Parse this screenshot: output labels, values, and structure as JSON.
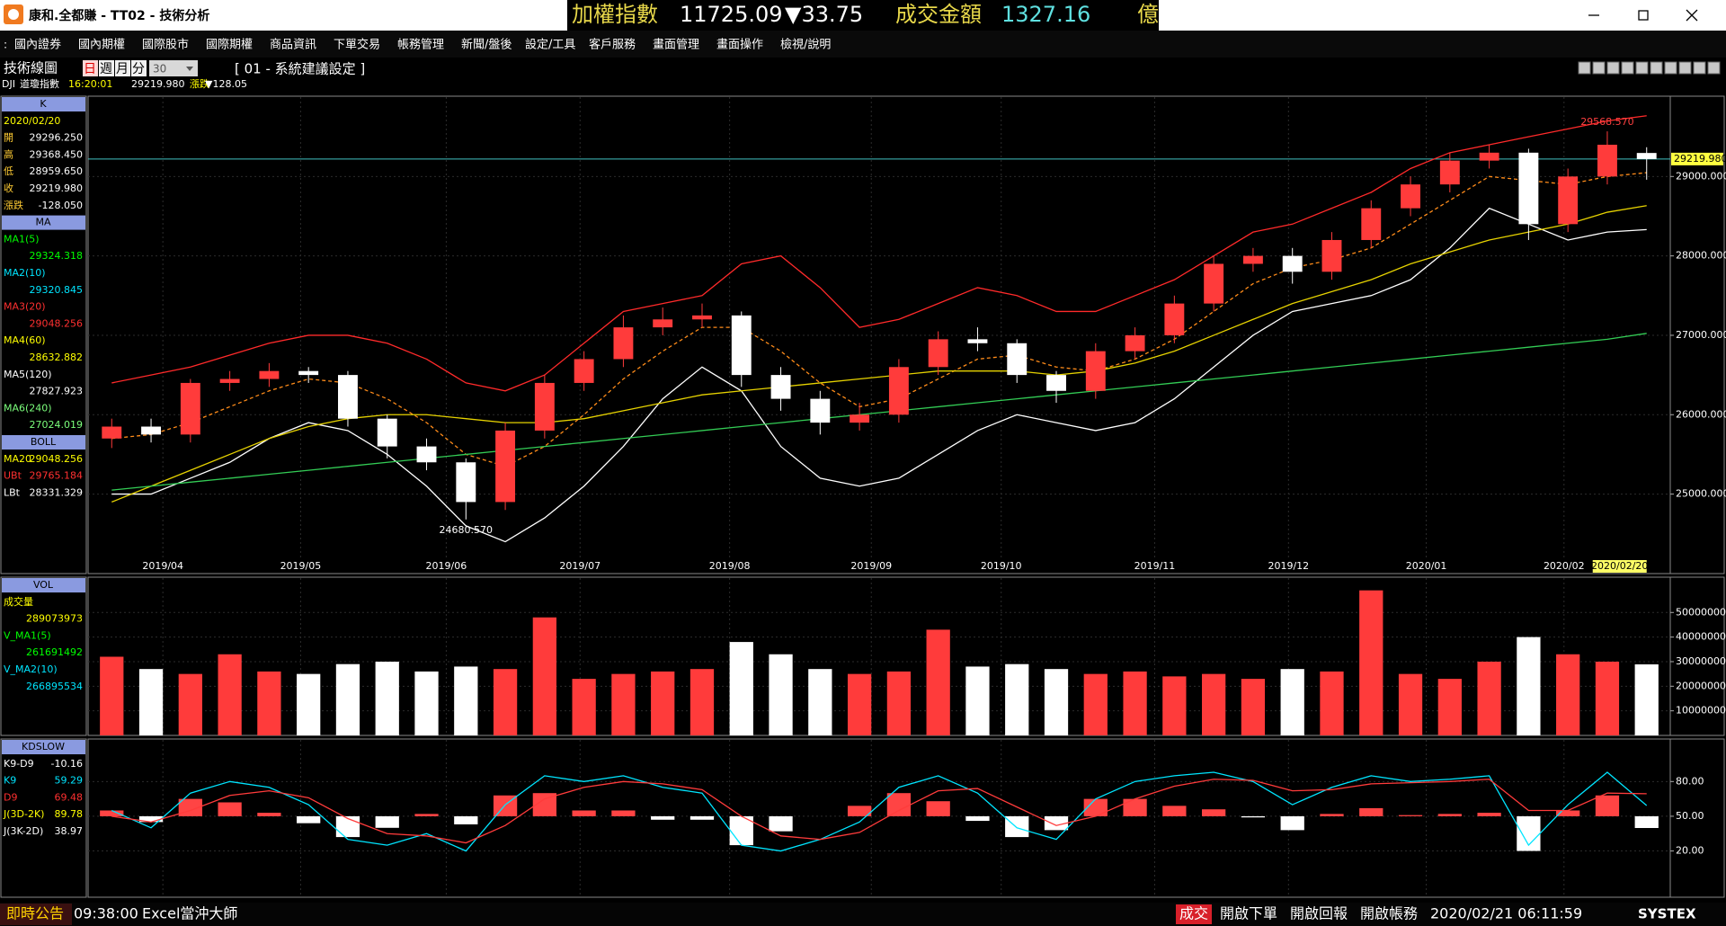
{
  "window": {
    "title": "康和.全都賺 - TT02 - 技術分析",
    "ticker": {
      "index_label": "加權指數",
      "index_value": "11725.09",
      "index_change": "▼33.75",
      "amount_label": "成交金額",
      "amount_value": "1327.16",
      "amount_unit": "億"
    }
  },
  "menu": [
    "國內證券",
    "國內期權",
    "國際股市",
    "國際期權",
    "商品資訊",
    "下單交易",
    "帳務管理",
    "新聞/盤後",
    "設定/工具",
    "客戶服務",
    "畫面管理",
    "畫面操作",
    "檢視/說明"
  ],
  "toolbar": {
    "title": "技術線圖",
    "periods": [
      "日",
      "週",
      "月",
      "分"
    ],
    "count": "30",
    "setting": "[ 01 - 系統建議設定 ]"
  },
  "quote": {
    "symbol": "DJI",
    "name": "道瓊指數",
    "time": "16:20:01",
    "price": "29219.980",
    "change_label": "漲跌",
    "change": "▼128.05"
  },
  "panels": [
    {
      "sections": [
        {
          "header": "K",
          "rows": [
            {
              "label": "2020/02/20",
              "color": "#ffff00"
            },
            {
              "label": "開",
              "value": "29296.250"
            },
            {
              "label": "高",
              "value": "29368.450"
            },
            {
              "label": "低",
              "value": "28959.650"
            },
            {
              "label": "收",
              "value": "29219.980"
            },
            {
              "label": "漲跌",
              "value": "-128.050"
            }
          ]
        },
        {
          "header": "MA",
          "rows": [
            {
              "label": "MA1(5)",
              "color": "#00ff00"
            },
            {
              "value": "29324.318",
              "color": "#00ff00"
            },
            {
              "label": "MA2(10)",
              "color": "#00e5ff"
            },
            {
              "value": "29320.845",
              "color": "#00e5ff"
            },
            {
              "label": "MA3(20)",
              "color": "#ff3030"
            },
            {
              "value": "29048.256",
              "color": "#ff3030"
            },
            {
              "label": "MA4(60)",
              "color": "#ffff00"
            },
            {
              "value": "28632.882",
              "color": "#ffff00"
            },
            {
              "label": "MA5(120)",
              "color": "#ffffff"
            },
            {
              "value": "27827.923",
              "color": "#ffffff"
            },
            {
              "label": "MA6(240)",
              "color": "#7cff7c"
            },
            {
              "value": "27024.019",
              "color": "#7cff7c"
            }
          ]
        },
        {
          "header": "BOLL",
          "rows": [
            {
              "label": "MA20",
              "value": "29048.256",
              "color": "#ffff00"
            },
            {
              "label": "UBt",
              "value": "29765.184",
              "color": "#ff3030"
            },
            {
              "label": "LBt",
              "value": "28331.329",
              "color": "#ffffff"
            }
          ]
        }
      ]
    },
    {
      "sections": [
        {
          "header": "VOL",
          "rows": [
            {
              "label": "成交量",
              "color": "#ffff00"
            },
            {
              "value": "289073973",
              "color": "#ffff00"
            },
            {
              "label": "V_MA1(5)",
              "color": "#00ff00"
            },
            {
              "value": "261691492",
              "color": "#00ff00"
            },
            {
              "label": "V_MA2(10)",
              "color": "#00e5ff"
            },
            {
              "value": "266895534",
              "color": "#00e5ff"
            }
          ]
        }
      ]
    },
    {
      "sections": [
        {
          "header": "KDSLOW",
          "rows": [
            {
              "label": "K9-D9",
              "value": "-10.16",
              "color": "#ffffff"
            },
            {
              "label": "K9",
              "value": "59.29",
              "color": "#00e5ff"
            },
            {
              "label": "D9",
              "value": "69.48",
              "color": "#ff3030"
            },
            {
              "label": "J(3D-2K)",
              "value": "89.78",
              "color": "#ffff00"
            },
            {
              "label": "J(3K-2D)",
              "value": "38.97",
              "color": "#ffffff"
            }
          ]
        }
      ]
    }
  ],
  "chart_data": [
    {
      "type": "candlestick",
      "x": [
        0,
        1,
        2,
        3,
        4,
        5,
        6,
        7,
        8,
        9,
        10,
        11,
        12,
        13,
        14,
        15,
        16,
        17,
        18,
        19,
        20,
        21,
        22,
        23,
        24,
        25,
        26,
        27,
        28,
        29,
        30,
        31,
        32,
        33,
        34,
        35,
        36,
        37,
        38,
        39
      ],
      "open": [
        25700,
        25850,
        25750,
        26400,
        26450,
        26550,
        26500,
        25950,
        25600,
        25400,
        24900,
        25800,
        26400,
        26700,
        27100,
        27200,
        27250,
        26500,
        26200,
        25900,
        26000,
        26600,
        26950,
        26900,
        26500,
        26300,
        26800,
        27000,
        27400,
        27900,
        28000,
        27800,
        28200,
        28600,
        28900,
        29200,
        29300,
        28400,
        29000,
        29296.25
      ],
      "high": [
        25950,
        25950,
        26450,
        26550,
        26650,
        26600,
        26550,
        26000,
        25700,
        25450,
        25900,
        26500,
        26800,
        27250,
        27350,
        27400,
        27300,
        26600,
        26300,
        26150,
        26700,
        27050,
        27100,
        26950,
        26550,
        26900,
        27100,
        27500,
        28000,
        28100,
        28100,
        28300,
        28700,
        29000,
        29300,
        29400,
        29350,
        29100,
        29568.57,
        29368.45
      ],
      "low": [
        25580,
        25650,
        25650,
        26300,
        26350,
        26400,
        25850,
        25450,
        25300,
        24680.57,
        24800,
        25700,
        26300,
        26600,
        27000,
        27100,
        26350,
        26050,
        25750,
        25800,
        25900,
        26500,
        26800,
        26400,
        26150,
        26200,
        26700,
        26900,
        27300,
        27800,
        27650,
        27700,
        28100,
        28500,
        28800,
        29100,
        28200,
        28300,
        28900,
        28959.65
      ],
      "close": [
        25850,
        25750,
        26400,
        26450,
        26550,
        26500,
        25950,
        25600,
        25400,
        24900,
        25800,
        26400,
        26700,
        27100,
        27200,
        27250,
        26500,
        26200,
        25900,
        26000,
        26600,
        26950,
        26900,
        26500,
        26300,
        26800,
        27000,
        27400,
        27900,
        28000,
        27800,
        28200,
        28600,
        28900,
        29200,
        29300,
        28400,
        29000,
        29400,
        29219.98
      ],
      "up_color": "#ff3b3b",
      "down_color": "#ffffff",
      "series": [
        {
          "color": "#ff2a2a",
          "values": [
            26400,
            26500,
            26600,
            26750,
            26900,
            27000,
            27000,
            26900,
            26700,
            26400,
            26300,
            26500,
            26900,
            27300,
            27400,
            27500,
            27900,
            28000,
            27600,
            27100,
            27200,
            27400,
            27600,
            27500,
            27300,
            27300,
            27500,
            27700,
            28000,
            28300,
            28400,
            28600,
            28800,
            29100,
            29300,
            29400,
            29500,
            29600,
            29700,
            29765
          ]
        },
        {
          "color": "#ffffff",
          "values": [
            25000,
            25000,
            25200,
            25400,
            25700,
            25900,
            25800,
            25500,
            25100,
            24600,
            24400,
            24700,
            25100,
            25600,
            26200,
            26600,
            26300,
            25600,
            25200,
            25100,
            25200,
            25500,
            25800,
            26000,
            25900,
            25800,
            25900,
            26200,
            26600,
            27000,
            27300,
            27400,
            27500,
            27700,
            28100,
            28600,
            28400,
            28200,
            28300,
            28331
          ]
        },
        {
          "color": "#ff8c1a",
          "dash": true,
          "values": [
            25700,
            25750,
            25900,
            26100,
            26300,
            26450,
            26400,
            26200,
            25900,
            25500,
            25350,
            25600,
            26000,
            26450,
            26800,
            27100,
            27100,
            26800,
            26400,
            26100,
            26200,
            26450,
            26700,
            26750,
            26600,
            26550,
            26700,
            26950,
            27300,
            27650,
            27850,
            27950,
            28100,
            28400,
            28700,
            29000,
            28950,
            28900,
            29000,
            29048
          ]
        },
        {
          "color": "#e6d200",
          "values": [
            24900,
            25100,
            25300,
            25500,
            25700,
            25850,
            25950,
            26000,
            26000,
            25950,
            25900,
            25900,
            25950,
            26050,
            26150,
            26250,
            26300,
            26350,
            26400,
            26450,
            26500,
            26550,
            26550,
            26550,
            26500,
            26550,
            26650,
            26800,
            27000,
            27200,
            27400,
            27550,
            27700,
            27900,
            28050,
            28200,
            28300,
            28400,
            28550,
            28633
          ]
        },
        {
          "color": "#33cc55",
          "values": [
            25050,
            25100,
            25150,
            25200,
            25250,
            25300,
            25350,
            25400,
            25450,
            25500,
            25550,
            25600,
            25650,
            25700,
            25750,
            25800,
            25850,
            25900,
            25950,
            26000,
            26050,
            26100,
            26150,
            26200,
            26250,
            26300,
            26350,
            26400,
            26450,
            26500,
            26550,
            26600,
            26650,
            26700,
            26750,
            26800,
            26850,
            26900,
            26950,
            27024
          ]
        }
      ],
      "xlim": [
        -0.6,
        39.6
      ],
      "xticks": [
        {
          "value": 1.3,
          "label": "2019/04"
        },
        {
          "value": 4.8,
          "label": "2019/05"
        },
        {
          "value": 8.5,
          "label": "2019/06"
        },
        {
          "value": 11.9,
          "label": "2019/07"
        },
        {
          "value": 15.7,
          "label": "2019/08"
        },
        {
          "value": 19.3,
          "label": "2019/09"
        },
        {
          "value": 22.6,
          "label": "2019/10"
        },
        {
          "value": 26.5,
          "label": "2019/11"
        },
        {
          "value": 29.9,
          "label": "2019/12"
        },
        {
          "value": 33.4,
          "label": "2020/01"
        },
        {
          "value": 36.9,
          "label": "2020/02"
        }
      ],
      "last_date": "2020/02/20",
      "ylim": [
        24180,
        30000
      ],
      "yticks": [
        {
          "value": 25000,
          "label": "25000.000"
        },
        {
          "value": 26000,
          "label": "26000.000"
        },
        {
          "value": 27000,
          "label": "27000.000"
        },
        {
          "value": 28000,
          "label": "28000.000"
        },
        {
          "value": 29000,
          "label": "29000.000"
        }
      ],
      "last": {
        "value": 29219.98,
        "label": "29219.980"
      },
      "annotations": [
        {
          "label": "29568.570",
          "value": 29568.57,
          "color": "#ff4040"
        },
        {
          "label": "24680.570",
          "value": 24680.57,
          "color": "#ffffff"
        }
      ],
      "grid": true
    },
    {
      "type": "bar",
      "x": [
        0,
        1,
        2,
        3,
        4,
        5,
        6,
        7,
        8,
        9,
        10,
        11,
        12,
        13,
        14,
        15,
        16,
        17,
        18,
        19,
        20,
        21,
        22,
        23,
        24,
        25,
        26,
        27,
        28,
        29,
        30,
        31,
        32,
        33,
        34,
        35,
        36,
        37,
        38,
        39
      ],
      "values": [
        320000000,
        270000000,
        250000000,
        330000000,
        260000000,
        250000000,
        290000000,
        300000000,
        260000000,
        280000000,
        270000000,
        480000000,
        230000000,
        250000000,
        260000000,
        270000000,
        380000000,
        330000000,
        270000000,
        250000000,
        260000000,
        430000000,
        280000000,
        290000000,
        270000000,
        250000000,
        260000000,
        240000000,
        250000000,
        230000000,
        270000000,
        260000000,
        590000000,
        250000000,
        230000000,
        300000000,
        400000000,
        330000000,
        300000000,
        289073973
      ],
      "xlim": [
        -0.6,
        39.6
      ],
      "ylim": [
        0,
        640000000
      ],
      "yticks": [
        100000000,
        200000000,
        300000000,
        400000000,
        500000000
      ],
      "grid": true
    },
    {
      "type": "line",
      "x": [
        0,
        1,
        2,
        3,
        4,
        5,
        6,
        7,
        8,
        9,
        10,
        11,
        12,
        13,
        14,
        15,
        16,
        17,
        18,
        19,
        20,
        21,
        22,
        23,
        24,
        25,
        26,
        27,
        28,
        29,
        30,
        31,
        32,
        33,
        34,
        35,
        36,
        37,
        38,
        39
      ],
      "series": [
        {
          "color": "#00e5ff",
          "values": [
            55,
            40,
            70,
            80,
            75,
            60,
            30,
            25,
            35,
            20,
            60,
            85,
            80,
            85,
            75,
            70,
            25,
            20,
            30,
            45,
            75,
            85,
            70,
            40,
            30,
            65,
            80,
            85,
            88,
            80,
            60,
            75,
            85,
            80,
            82,
            85,
            25,
            60,
            88,
            59.29
          ]
        },
        {
          "color": "#ff3b3b",
          "values": [
            50,
            45,
            55,
            68,
            72,
            66,
            48,
            35,
            33,
            27,
            42,
            65,
            75,
            80,
            78,
            73,
            50,
            33,
            30,
            36,
            55,
            72,
            74,
            58,
            42,
            50,
            65,
            76,
            82,
            81,
            72,
            73,
            78,
            79,
            80,
            82,
            55,
            55,
            70,
            69.48
          ]
        }
      ],
      "histogram": {
        "axis": "y2",
        "pos_color": "#ff4444",
        "neg_color": "#ffffff",
        "values": [
          5,
          -5,
          15,
          12,
          3,
          -6,
          -18,
          -10,
          2,
          -7,
          18,
          20,
          5,
          5,
          -3,
          -3,
          -25,
          -13,
          0,
          9,
          20,
          13,
          -4,
          -18,
          -12,
          15,
          15,
          9,
          6,
          -1,
          -12,
          2,
          7,
          1,
          2,
          3,
          -30,
          5,
          18,
          -10.16
        ]
      },
      "xlim": [
        -0.6,
        39.6
      ],
      "ylim": [
        -20,
        116
      ],
      "y2lim": [
        -70,
        66
      ],
      "yticks": [
        {
          "value": 20,
          "label": "20.00"
        },
        {
          "value": 50,
          "label": "50.00"
        },
        {
          "value": 80,
          "label": "80.00"
        }
      ],
      "grid": true
    }
  ],
  "status": {
    "notice": "即時公告",
    "time": "09:38:00",
    "app": "Excel當沖大師",
    "trade": "成交",
    "buttons": [
      "開啟下單",
      "開啟回報",
      "開啟帳務"
    ],
    "datetime": "2020/02/21 06:11:59",
    "brand": "SYSTEX"
  }
}
